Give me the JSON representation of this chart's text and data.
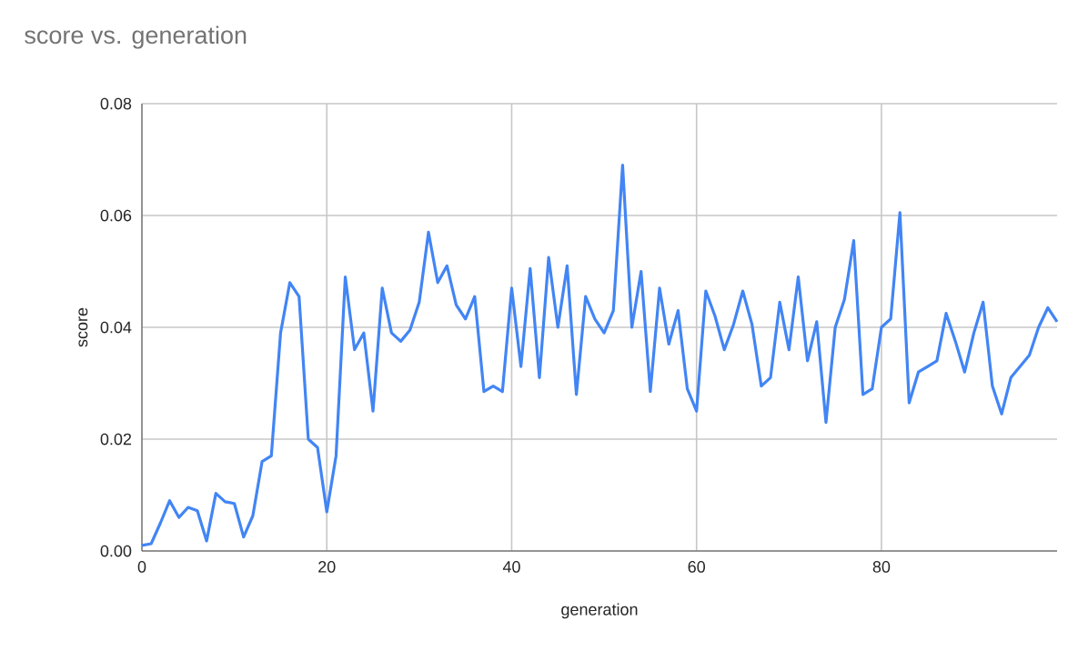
{
  "chart_data": {
    "type": "line",
    "title": "score vs. generation",
    "xlabel": "generation",
    "ylabel": "score",
    "x": [
      0,
      1,
      2,
      3,
      4,
      5,
      6,
      7,
      8,
      9,
      10,
      11,
      12,
      13,
      14,
      15,
      16,
      17,
      18,
      19,
      20,
      21,
      22,
      23,
      24,
      25,
      26,
      27,
      28,
      29,
      30,
      31,
      32,
      33,
      34,
      35,
      36,
      37,
      38,
      39,
      40,
      41,
      42,
      43,
      44,
      45,
      46,
      47,
      48,
      49,
      50,
      51,
      52,
      53,
      54,
      55,
      56,
      57,
      58,
      59,
      60,
      61,
      62,
      63,
      64,
      65,
      66,
      67,
      68,
      69,
      70,
      71,
      72,
      73,
      74,
      75,
      76,
      77,
      78,
      79,
      80,
      81,
      82,
      83,
      84,
      85,
      86,
      87,
      88,
      89,
      90,
      91,
      92,
      93,
      94,
      95,
      96,
      97,
      98,
      99
    ],
    "series": [
      {
        "color": "#4285f4",
        "values": [
          0.001,
          0.0013,
          0.005,
          0.009,
          0.006,
          0.0078,
          0.0072,
          0.0018,
          0.0103,
          0.0088,
          0.0085,
          0.0025,
          0.0063,
          0.016,
          0.017,
          0.039,
          0.048,
          0.0455,
          0.02,
          0.0185,
          0.007,
          0.017,
          0.049,
          0.036,
          0.039,
          0.025,
          0.047,
          0.039,
          0.0375,
          0.0395,
          0.0445,
          0.057,
          0.048,
          0.051,
          0.044,
          0.0415,
          0.0455,
          0.0285,
          0.0295,
          0.0285,
          0.047,
          0.033,
          0.0505,
          0.031,
          0.0525,
          0.04,
          0.051,
          0.028,
          0.0455,
          0.0415,
          0.039,
          0.043,
          0.069,
          0.04,
          0.05,
          0.0285,
          0.047,
          0.037,
          0.043,
          0.029,
          0.025,
          0.0465,
          0.042,
          0.036,
          0.0405,
          0.0465,
          0.0405,
          0.0295,
          0.031,
          0.0445,
          0.036,
          0.049,
          0.034,
          0.041,
          0.023,
          0.04,
          0.045,
          0.0555,
          0.028,
          0.029,
          0.04,
          0.0415,
          0.0605,
          0.0265,
          0.032,
          0.033,
          0.034,
          0.0425,
          0.0375,
          0.032,
          0.039,
          0.0445,
          0.0295,
          0.0245,
          0.031,
          0.033,
          0.035,
          0.04,
          0.0435,
          0.041
        ]
      }
    ],
    "xlim": [
      0,
      99
    ],
    "ylim": [
      0,
      0.08
    ],
    "xticks": [
      0,
      20,
      40,
      60,
      80
    ],
    "yticks": [
      {
        "value": 0,
        "label": "0.00"
      },
      {
        "value": 0.02,
        "label": "0.02"
      },
      {
        "value": 0.04,
        "label": "0.04"
      },
      {
        "value": 0.06,
        "label": "0.06"
      },
      {
        "value": 0.08,
        "label": "0.08"
      }
    ],
    "grid": true,
    "marker": "none",
    "line_style": "solid"
  }
}
